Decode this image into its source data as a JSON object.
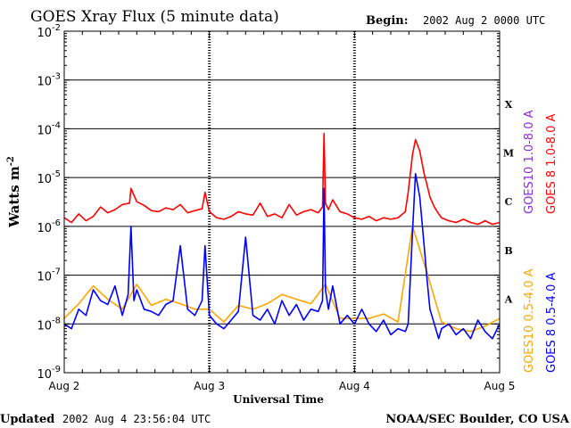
{
  "header": {
    "title": "GOES Xray Flux (5 minute data)",
    "begin_label": "Begin:",
    "begin_value": "2002 Aug 2 0000 UTC"
  },
  "footer": {
    "updated_label": "Updated",
    "updated_value": "2002 Aug  4 23:56:04 UTC",
    "credit": "NOAA/SEC Boulder, CO USA"
  },
  "colors": {
    "goes10_long": "#8a2be2",
    "goes8_long": "#ff0000",
    "goes10_short": "#ffa500",
    "goes8_short": "#0000ff",
    "grid": "#000000"
  },
  "chart_data": {
    "type": "line",
    "xlabel": "Universal Time",
    "ylabel": "Watts m",
    "ylabel_sup": "-2",
    "xlim": [
      0,
      3
    ],
    "xticks": [
      0,
      1,
      2,
      3
    ],
    "xtick_labels": [
      "Aug 2",
      "Aug 3",
      "Aug 4",
      "Aug 5"
    ],
    "y_scale": "log",
    "ylim": [
      1e-09,
      0.01
    ],
    "ytick_exponents": [
      -9,
      -8,
      -7,
      -6,
      -5,
      -4,
      -3,
      -2
    ],
    "ytick_base": "10",
    "grid": "horizontal at each decade",
    "flare_classes": [
      {
        "label": "A",
        "level": 3.2e-08
      },
      {
        "label": "B",
        "level": 3.2e-07
      },
      {
        "label": "C",
        "level": 3.2e-06
      },
      {
        "label": "M",
        "level": 3.2e-05
      },
      {
        "label": "X",
        "level": 0.00032
      }
    ],
    "legend": [
      {
        "name": "GOES10 1.0-8.0 A",
        "color": "#8a2be2"
      },
      {
        "name": "GOES 8 1.0-8.0 A",
        "color": "#ff0000"
      },
      {
        "name": "GOES10 0.5-4.0 A",
        "color": "#ffa500"
      },
      {
        "name": "GOES 8 0.5-4.0 A",
        "color": "#0000ff"
      }
    ],
    "series": [
      {
        "name": "GOES 8 1.0-8.0 A",
        "color": "#ff0000",
        "x": [
          0.0,
          0.05,
          0.1,
          0.15,
          0.2,
          0.25,
          0.3,
          0.35,
          0.4,
          0.45,
          0.46,
          0.5,
          0.55,
          0.6,
          0.65,
          0.7,
          0.75,
          0.8,
          0.85,
          0.9,
          0.95,
          0.97,
          1.0,
          1.05,
          1.1,
          1.15,
          1.2,
          1.25,
          1.3,
          1.35,
          1.4,
          1.45,
          1.5,
          1.55,
          1.6,
          1.65,
          1.7,
          1.75,
          1.78,
          1.79,
          1.8,
          1.82,
          1.85,
          1.9,
          1.95,
          2.0,
          2.05,
          2.1,
          2.15,
          2.2,
          2.25,
          2.3,
          2.35,
          2.37,
          2.4,
          2.42,
          2.45,
          2.48,
          2.5,
          2.52,
          2.55,
          2.58,
          2.6,
          2.65,
          2.7,
          2.75,
          2.8,
          2.85,
          2.9,
          2.95,
          3.0
        ],
        "values": [
          1.5e-06,
          1.2e-06,
          1.8e-06,
          1.3e-06,
          1.6e-06,
          2.5e-06,
          1.9e-06,
          2.2e-06,
          2.8e-06,
          3e-06,
          6e-06,
          3.2e-06,
          2.7e-06,
          2.1e-06,
          2e-06,
          2.4e-06,
          2.2e-06,
          2.8e-06,
          1.9e-06,
          2.1e-06,
          2.3e-06,
          5e-06,
          2e-06,
          1.5e-06,
          1.4e-06,
          1.6e-06,
          2e-06,
          1.8e-06,
          1.7e-06,
          3e-06,
          1.6e-06,
          1.8e-06,
          1.5e-06,
          2.8e-06,
          1.7e-06,
          2e-06,
          2.2e-06,
          1.9e-06,
          2.5e-06,
          8e-05,
          3e-06,
          2.2e-06,
          3.5e-06,
          2e-06,
          1.8e-06,
          1.5e-06,
          1.4e-06,
          1.6e-06,
          1.3e-06,
          1.5e-06,
          1.4e-06,
          1.5e-06,
          2e-06,
          5e-06,
          3e-05,
          6e-05,
          3.5e-05,
          1.2e-05,
          7e-06,
          4e-06,
          2.5e-06,
          1.8e-06,
          1.5e-06,
          1.3e-06,
          1.2e-06,
          1.4e-06,
          1.2e-06,
          1.1e-06,
          1.3e-06,
          1.1e-06,
          1.2e-06
        ]
      },
      {
        "name": "GOES 8 0.5-4.0 A",
        "color": "#0000ff",
        "x": [
          0.0,
          0.05,
          0.1,
          0.15,
          0.2,
          0.25,
          0.3,
          0.35,
          0.4,
          0.44,
          0.46,
          0.48,
          0.5,
          0.55,
          0.6,
          0.65,
          0.7,
          0.75,
          0.8,
          0.85,
          0.9,
          0.95,
          0.97,
          1.0,
          1.05,
          1.1,
          1.15,
          1.2,
          1.25,
          1.3,
          1.35,
          1.4,
          1.45,
          1.5,
          1.55,
          1.6,
          1.65,
          1.7,
          1.75,
          1.78,
          1.79,
          1.8,
          1.82,
          1.85,
          1.9,
          1.95,
          2.0,
          2.05,
          2.1,
          2.15,
          2.2,
          2.25,
          2.3,
          2.35,
          2.37,
          2.4,
          2.42,
          2.45,
          2.48,
          2.5,
          2.52,
          2.55,
          2.58,
          2.6,
          2.65,
          2.7,
          2.75,
          2.8,
          2.85,
          2.9,
          2.95,
          3.0
        ],
        "values": [
          1e-08,
          8e-09,
          2e-08,
          1.5e-08,
          5e-08,
          3e-08,
          2.5e-08,
          6e-08,
          1.5e-08,
          4e-08,
          1e-06,
          3e-08,
          5e-08,
          2e-08,
          1.8e-08,
          1.5e-08,
          2.5e-08,
          3e-08,
          4e-07,
          2e-08,
          1.5e-08,
          3e-08,
          4e-07,
          1.5e-08,
          1e-08,
          8e-09,
          1.2e-08,
          1.8e-08,
          6e-07,
          1.5e-08,
          1.2e-08,
          2e-08,
          1e-08,
          3e-08,
          1.5e-08,
          2.5e-08,
          1.2e-08,
          2e-08,
          1.8e-08,
          3e-08,
          6e-06,
          5e-08,
          2e-08,
          6e-08,
          1e-08,
          1.5e-08,
          1e-08,
          2e-08,
          1e-08,
          7e-09,
          1.2e-08,
          6e-09,
          8e-09,
          7e-09,
          1e-08,
          8e-07,
          1.2e-05,
          4e-06,
          4e-07,
          8e-08,
          2e-08,
          1e-08,
          5e-09,
          8e-09,
          1e-08,
          6e-09,
          8e-09,
          5e-09,
          1.2e-08,
          7e-09,
          5e-09,
          1e-08
        ]
      },
      {
        "name": "GOES10 0.5-4.0 A",
        "color": "#ffa500",
        "x": [
          0.0,
          0.1,
          0.2,
          0.3,
          0.4,
          0.5,
          0.6,
          0.7,
          0.8,
          0.9,
          1.0,
          1.1,
          1.2,
          1.3,
          1.4,
          1.5,
          1.6,
          1.7,
          1.8,
          1.9,
          2.0,
          2.1,
          2.2,
          2.3,
          2.4,
          2.5,
          2.6,
          2.7,
          2.8,
          2.9,
          3.0
        ],
        "values": [
          1.3e-08,
          2.6e-08,
          6e-08,
          3.2e-08,
          2e-08,
          6.5e-08,
          2.4e-08,
          3.2e-08,
          2.6e-08,
          2e-08,
          2e-08,
          1.1e-08,
          2.4e-08,
          2e-08,
          2.6e-08,
          4e-08,
          3.2e-08,
          2.6e-08,
          6.5e-08,
          1.3e-08,
          1.3e-08,
          1.3e-08,
          1.6e-08,
          1.1e-08,
          1e-06,
          1.1e-07,
          1.1e-08,
          8e-09,
          7e-09,
          9e-09,
          1.3e-08
        ]
      }
    ]
  }
}
